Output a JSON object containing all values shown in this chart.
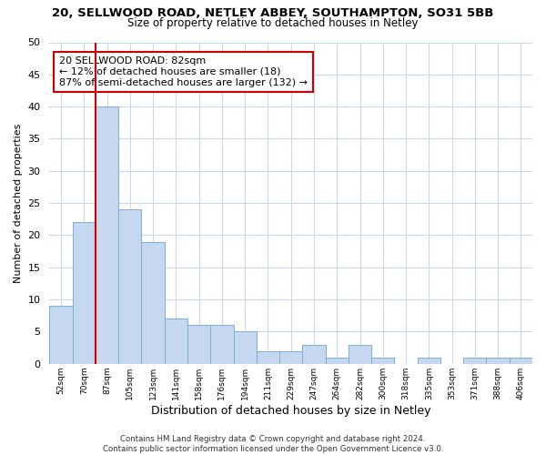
{
  "title1": "20, SELLWOOD ROAD, NETLEY ABBEY, SOUTHAMPTON, SO31 5BB",
  "title2": "Size of property relative to detached houses in Netley",
  "xlabel": "Distribution of detached houses by size in Netley",
  "ylabel": "Number of detached properties",
  "categories": [
    "52sqm",
    "70sqm",
    "87sqm",
    "105sqm",
    "123sqm",
    "141sqm",
    "158sqm",
    "176sqm",
    "194sqm",
    "211sqm",
    "229sqm",
    "247sqm",
    "264sqm",
    "282sqm",
    "300sqm",
    "318sqm",
    "335sqm",
    "353sqm",
    "371sqm",
    "388sqm",
    "406sqm"
  ],
  "values": [
    9,
    22,
    40,
    24,
    19,
    7,
    6,
    6,
    5,
    2,
    2,
    3,
    1,
    3,
    1,
    0,
    1,
    0,
    1,
    1,
    1
  ],
  "bar_color": "#c5d8f0",
  "bar_edge_color": "#7aafd4",
  "highlight_index": 2,
  "highlight_line_color": "#cc0000",
  "annotation_text": "20 SELLWOOD ROAD: 82sqm\n← 12% of detached houses are smaller (18)\n87% of semi-detached houses are larger (132) →",
  "annotation_box_color": "#ffffff",
  "annotation_box_edge": "#cc0000",
  "ylim": [
    0,
    50
  ],
  "yticks": [
    0,
    5,
    10,
    15,
    20,
    25,
    30,
    35,
    40,
    45,
    50
  ],
  "footer": "Contains HM Land Registry data © Crown copyright and database right 2024.\nContains public sector information licensed under the Open Government Licence v3.0.",
  "bg_color": "#ffffff",
  "grid_color": "#c8d8ea"
}
